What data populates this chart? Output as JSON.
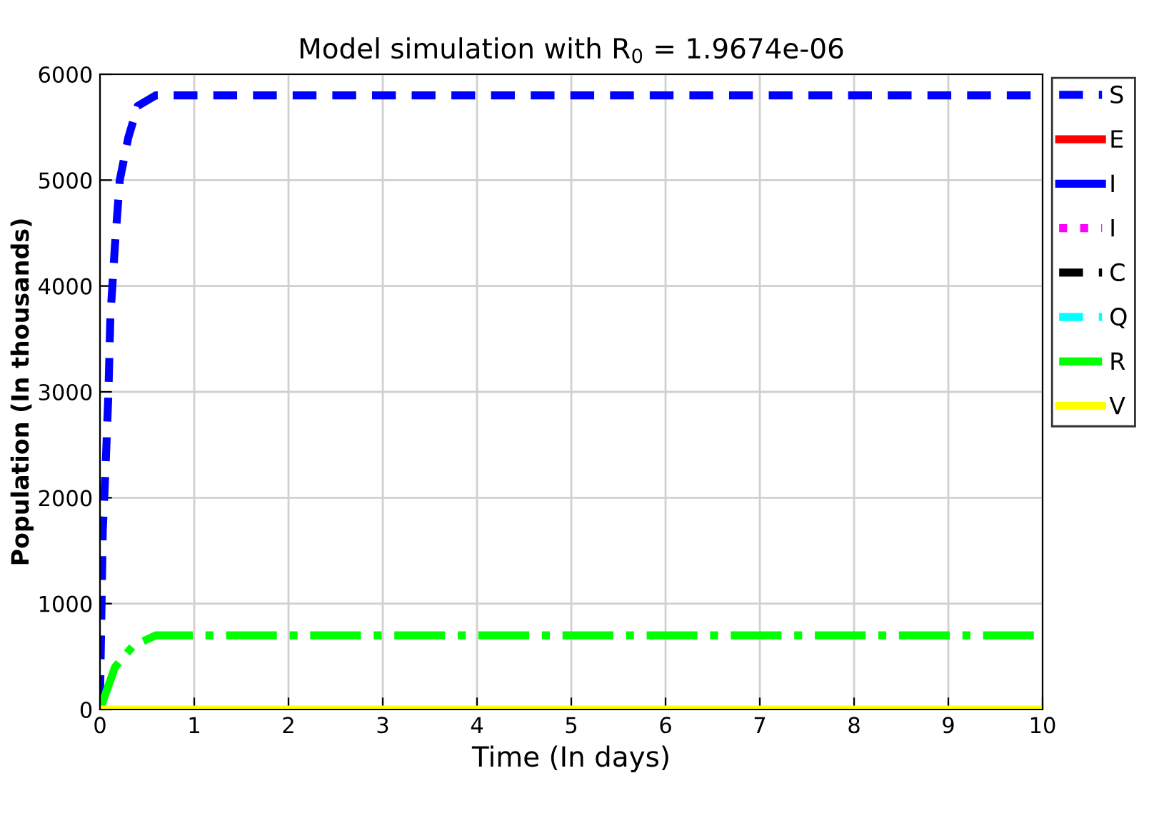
{
  "chart_data": {
    "type": "line",
    "title": "Model simulation with R$_{0}$ = 1.9674e-06",
    "xlabel": "Time (In days)",
    "ylabel": "Population (In thousands)",
    "xlim": [
      0,
      10
    ],
    "ylim": [
      0,
      6000
    ],
    "xticks": [
      0,
      1,
      2,
      3,
      4,
      5,
      6,
      7,
      8,
      9,
      10
    ],
    "yticks": [
      0,
      1000,
      2000,
      3000,
      4000,
      5000,
      6000
    ],
    "grid": true,
    "legend": "right",
    "series": [
      {
        "name": "S",
        "color": "#0000ff",
        "line_style": "dashed",
        "x": [
          0,
          0.03,
          0.06,
          0.09,
          0.11,
          0.16,
          0.21,
          0.3,
          0.4,
          0.59,
          0.8,
          10
        ],
        "values": [
          100,
          1700,
          2300,
          3000,
          3700,
          4400,
          5000,
          5400,
          5700,
          5800,
          5800,
          5800
        ]
      },
      {
        "name": "E",
        "color": "#ff0000",
        "line_style": "solid",
        "values": [
          null,
          null
        ]
      },
      {
        "name": "I",
        "color": "#0000ff",
        "line_style": "solid",
        "values": [
          null,
          null
        ]
      },
      {
        "name": "I",
        "color": "#ff00ff",
        "line_style": "dotted",
        "values": [
          null,
          null
        ]
      },
      {
        "name": "C",
        "color": "#000000",
        "line_style": "dashed",
        "values": [
          null,
          null
        ]
      },
      {
        "name": "Q",
        "color": "#00ffff",
        "line_style": "dashed",
        "values": [
          null,
          null
        ]
      },
      {
        "name": "R",
        "color": "#00ff00",
        "line_style": "dashdot",
        "x": [
          0,
          0.16,
          0.35,
          0.59,
          0.75,
          10
        ],
        "values": [
          0,
          400,
          600,
          700,
          700,
          700
        ]
      },
      {
        "name": "V",
        "color": "#ffff00",
        "line_style": "solid",
        "x": [
          0,
          10
        ],
        "values": [
          0,
          0
        ]
      }
    ]
  }
}
